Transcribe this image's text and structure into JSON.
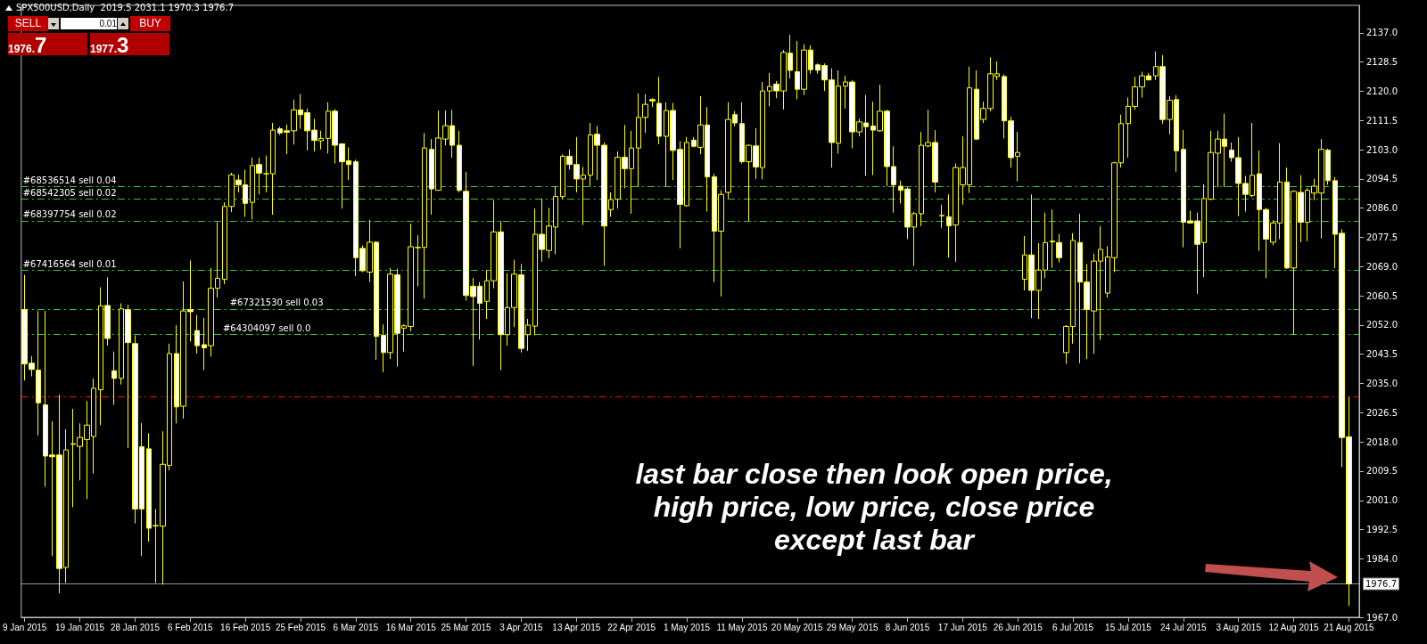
{
  "chart_data": {
    "type": "candlestick",
    "title": "SPX500USD,Daily  2019.5 2031.1 1970.3 1976.7",
    "color": "#ffff00",
    "categories": [
      "9 Jan 2015",
      null,
      null,
      null,
      null,
      null,
      null,
      null,
      "19 Jan 2015",
      null,
      null,
      null,
      null,
      null,
      null,
      null,
      "28 Jan 2015",
      null,
      null,
      null,
      null,
      null,
      null,
      null,
      "6 Feb 2015",
      null,
      null,
      null,
      null,
      null,
      null,
      null,
      "16 Feb 2015",
      null,
      null,
      null,
      null,
      null,
      null,
      null,
      "25 Feb 2015",
      null,
      null,
      null,
      null,
      null,
      null,
      null,
      "6 Mar 2015",
      null,
      null,
      null,
      null,
      null,
      null,
      null,
      "16 Mar 2015",
      null,
      null,
      null,
      null,
      null,
      null,
      null,
      "25 Mar 2015",
      null,
      null,
      null,
      null,
      null,
      null,
      null,
      "3 Apr 2015",
      null,
      null,
      null,
      null,
      null,
      null,
      null,
      "13 Apr 2015",
      null,
      null,
      null,
      null,
      null,
      null,
      null,
      "22 Apr 2015",
      null,
      null,
      null,
      null,
      null,
      null,
      null,
      "1 May 2015",
      null,
      null,
      null,
      null,
      null,
      null,
      null,
      "11 May 2015",
      null,
      null,
      null,
      null,
      null,
      null,
      null,
      "20 May 2015",
      null,
      null,
      null,
      null,
      null,
      null,
      null,
      "29 May 2015",
      null,
      null,
      null,
      null,
      null,
      null,
      null,
      "8 Jun 2015",
      null,
      null,
      null,
      null,
      null,
      null,
      null,
      "17 Jun 2015",
      null,
      null,
      null,
      null,
      null,
      null,
      null,
      "26 Jun 2015",
      null,
      null,
      null,
      null,
      null,
      null,
      null,
      "6 Jul 2015",
      null,
      null,
      null,
      null,
      null,
      null,
      null,
      "15 Jul 2015",
      null,
      null,
      null,
      null,
      null,
      null,
      null,
      "24 Jul 2015",
      null,
      null,
      null,
      null,
      null,
      null,
      null,
      "3 Aug 2015",
      null,
      null,
      null,
      null,
      null,
      null,
      null,
      "12 Aug 2015",
      null,
      null,
      null,
      null,
      null,
      null,
      null,
      "21 Aug 2015"
    ],
    "ohlc": [
      [
        2056.5,
        2066.6,
        2035.9,
        2040.7
      ],
      [
        2040.9,
        2043,
        2037.1,
        2039.1
      ],
      [
        2038.9,
        2056.1,
        2019.9,
        2029.4
      ],
      [
        2028.8,
        2056.1,
        2005,
        2013.9
      ],
      [
        2014.2,
        2024,
        1984.8,
        2013.7
      ],
      [
        2014.2,
        2031.8,
        1974,
        1981.2
      ],
      [
        1981.5,
        2021.7,
        1977,
        2015.7
      ],
      [
        2017.3,
        2027.6,
        1999,
        2017.5
      ],
      [
        2016.7,
        2023.4,
        2006.8,
        2019.3
      ],
      [
        2018.7,
        2029.9,
        2001.4,
        2022.9
      ],
      [
        2019.6,
        2036.5,
        2008.8,
        2033.6
      ],
      [
        2033.2,
        2063,
        2022.9,
        2057.6
      ],
      [
        2057.7,
        2065.9,
        2046,
        2048.1
      ],
      [
        2038.7,
        2044.3,
        2028.8,
        2036.5
      ],
      [
        2036.5,
        2058.3,
        2034.7,
        2056.7
      ],
      [
        2056.5,
        2057.9,
        2016.3,
        2046.9
      ],
      [
        2046.6,
        2049,
        1994.3,
        1998.5
      ],
      [
        2016.6,
        2023.5,
        1984.8,
        1998.5
      ],
      [
        2016,
        2020.5,
        1989,
        1992.9
      ],
      [
        1993.7,
        1998.5,
        1977,
        1993.6
      ],
      [
        1993.5,
        2021.1,
        1976.5,
        2011.5
      ],
      [
        2011.2,
        2046.6,
        2009.7,
        2043.7
      ],
      [
        2043.7,
        2052,
        2023.4,
        2028.2
      ],
      [
        2028.4,
        2064.7,
        2024.8,
        2056.1
      ],
      [
        2056.5,
        2070.8,
        2047.2,
        2055.9
      ],
      [
        2050.4,
        2054.9,
        2043.7,
        2046
      ],
      [
        2046.3,
        2054.1,
        2038.9,
        2045.4
      ],
      [
        2046,
        2068.6,
        2042.8,
        2062.7
      ],
      [
        2062.7,
        2081.9,
        2060,
        2065.6
      ],
      [
        2065.3,
        2087.7,
        2063.9,
        2086.5
      ],
      [
        2086.5,
        2096.3,
        2084.9,
        2095.7
      ],
      [
        2094.2,
        2095.7,
        2090.6,
        2092.8
      ],
      [
        2092.8,
        2097.2,
        2083.5,
        2087.4
      ],
      [
        2087.7,
        2100.7,
        2082.7,
        2098.4
      ],
      [
        2098.7,
        2100.7,
        2090,
        2096.2
      ],
      [
        2096,
        2101.3,
        2090.6,
        2096
      ],
      [
        2096,
        2110.8,
        2084.1,
        2108.7
      ],
      [
        2109.1,
        2109.7,
        2107.3,
        2107.9
      ],
      [
        2108.5,
        2110.3,
        2101.7,
        2108.1
      ],
      [
        2108.5,
        2117.6,
        2104.5,
        2114.6
      ],
      [
        2114.6,
        2119.2,
        2109.1,
        2113.2
      ],
      [
        2113.8,
        2115,
        2102.8,
        2108.5
      ],
      [
        2108.7,
        2112,
        2102.5,
        2105.7
      ],
      [
        2105.6,
        2108.5,
        2103.1,
        2106.3
      ],
      [
        2106.3,
        2116.8,
        2101.9,
        2114.2
      ],
      [
        2114.2,
        2114.8,
        2099,
        2104.3
      ],
      [
        2104.7,
        2104.9,
        2085.9,
        2099.5
      ],
      [
        2099.8,
        2103.7,
        2094.2,
        2098.7
      ],
      [
        2099.5,
        2100.1,
        2066.2,
        2071.6
      ],
      [
        2074.3,
        2075.2,
        2067.4,
        2067.8
      ],
      [
        2067.4,
        2082.6,
        2064.5,
        2076.1
      ],
      [
        2076.1,
        2076.4,
        2041.9,
        2048.7
      ],
      [
        2049,
        2052.2,
        2038.3,
        2044
      ],
      [
        2044,
        2068.6,
        2042.1,
        2066.8
      ],
      [
        2066.6,
        2068.4,
        2039.9,
        2049.6
      ],
      [
        2051.1,
        2052.2,
        2044.3,
        2051.8
      ],
      [
        2051.6,
        2081.5,
        2050.2,
        2074.8
      ],
      [
        2074.6,
        2078.1,
        2063.3,
        2074.5
      ],
      [
        2074.6,
        2107.9,
        2059.7,
        2103.5
      ],
      [
        2103.1,
        2106.1,
        2084.1,
        2091.6
      ],
      [
        2091.2,
        2114.4,
        2091.2,
        2106.4
      ],
      [
        2106.1,
        2114.4,
        2104.3,
        2110
      ],
      [
        2110,
        2114.6,
        2100.7,
        2104.3
      ],
      [
        2104.3,
        2108.5,
        2090.6,
        2091.2
      ],
      [
        2090.9,
        2096.6,
        2059.1,
        2060.6
      ],
      [
        2063.3,
        2065.7,
        2040.1,
        2060.3
      ],
      [
        2063.3,
        2064.5,
        2047.8,
        2058.3
      ],
      [
        2058.9,
        2068,
        2053.8,
        2064.9
      ],
      [
        2064.9,
        2088.3,
        2062.7,
        2079.1
      ],
      [
        2079.1,
        2082.3,
        2038.9,
        2049.2
      ],
      [
        2049.2,
        2067.1,
        2046,
        2057.1
      ],
      [
        2057.1,
        2071,
        2051.4,
        2066.8
      ],
      [
        2066.6,
        2069.8,
        2044,
        2045.2
      ],
      [
        2049.2,
        2053.8,
        2044.5,
        2052
      ],
      [
        2051.7,
        2085.9,
        2049,
        2078.4
      ],
      [
        2078.4,
        2088.8,
        2070.4,
        2074
      ],
      [
        2073.7,
        2086.1,
        2071.4,
        2080.8
      ],
      [
        2080.5,
        2092.4,
        2072.6,
        2089.4
      ],
      [
        2089.4,
        2101.6,
        2088.6,
        2101.1
      ],
      [
        2101.1,
        2103.1,
        2097.2,
        2098.7
      ],
      [
        2098.7,
        2106.7,
        2090.6,
        2094.5
      ],
      [
        2094.5,
        2098,
        2081.1,
        2095.6
      ],
      [
        2095.6,
        2110.8,
        2092.4,
        2107.3
      ],
      [
        2107.5,
        2109.9,
        2094.2,
        2104.3
      ],
      [
        2104.3,
        2105.1,
        2069.2,
        2080.8
      ],
      [
        2085.6,
        2090.6,
        2083.5,
        2088.5
      ],
      [
        2088.6,
        2102.5,
        2085.9,
        2100.8
      ],
      [
        2100.8,
        2110.2,
        2091.8,
        2097.5
      ],
      [
        2097.5,
        2108.5,
        2084.4,
        2103.5
      ],
      [
        2103.5,
        2119.4,
        2092.1,
        2112.4
      ],
      [
        2112.4,
        2119.2,
        2107.9,
        2116.2
      ],
      [
        2117.6,
        2118,
        2115.4,
        2117.2
      ],
      [
        2116.5,
        2124.2,
        2104.6,
        2106.9
      ],
      [
        2106.9,
        2116.8,
        2092.4,
        2114.4
      ],
      [
        2114.4,
        2116.6,
        2094.2,
        2102.8
      ],
      [
        2103.1,
        2105.5,
        2074.3,
        2087.1
      ],
      [
        2086.7,
        2106.7,
        2086.4,
        2105.1
      ],
      [
        2105.8,
        2106.7,
        2103.7,
        2104
      ],
      [
        2103.7,
        2118.6,
        2101.7,
        2110.2
      ],
      [
        2110.2,
        2115.4,
        2085,
        2095.1
      ],
      [
        2095.1,
        2096,
        2064.5,
        2079.3
      ],
      [
        2079.3,
        2091.2,
        2060.3,
        2090
      ],
      [
        2090.6,
        2116.8,
        2088.8,
        2111.8
      ],
      [
        2113.2,
        2114.2,
        2109.9,
        2110.8
      ],
      [
        2110.6,
        2116.8,
        2099,
        2099.5
      ],
      [
        2099.5,
        2104.5,
        2082.3,
        2104.3
      ],
      [
        2104.1,
        2109.3,
        2094.5,
        2098
      ],
      [
        2097.8,
        2122.7,
        2094.4,
        2120.1
      ],
      [
        2120.1,
        2125.3,
        2115.6,
        2121.4
      ],
      [
        2122.1,
        2123,
        2118,
        2120.1
      ],
      [
        2120.1,
        2132,
        2114.7,
        2131.3
      ],
      [
        2131.1,
        2136.4,
        2123.7,
        2126.1
      ],
      [
        2125.7,
        2134.6,
        2117.7,
        2120.6
      ],
      [
        2120.6,
        2133.7,
        2118.9,
        2132
      ],
      [
        2132,
        2133.4,
        2125.1,
        2126.3
      ],
      [
        2127.7,
        2128.1,
        2125.1,
        2126.1
      ],
      [
        2127.5,
        2128.1,
        2120.1,
        2123.3
      ],
      [
        2123.3,
        2126.7,
        2097.8,
        2105.1
      ],
      [
        2104.9,
        2126.1,
        2101.9,
        2121.5
      ],
      [
        2121.5,
        2124.5,
        2115,
        2122.7
      ],
      [
        2122.7,
        2123.3,
        2103.4,
        2108.2
      ],
      [
        2108.2,
        2112,
        2106.9,
        2111.1
      ],
      [
        2110.8,
        2118.9,
        2095.4,
        2109.7
      ],
      [
        2109.9,
        2117,
        2095.6,
        2108.7
      ],
      [
        2108.5,
        2121.9,
        2108.2,
        2114.2
      ],
      [
        2114.2,
        2114.6,
        2092.4,
        2098.1
      ],
      [
        2098.1,
        2104,
        2084.7,
        2092.8
      ],
      [
        2092.4,
        2094,
        2087.4,
        2091.2
      ],
      [
        2091.6,
        2092.1,
        2077,
        2080.5
      ],
      [
        2080.5,
        2084.9,
        2069.2,
        2084.4
      ],
      [
        2084.4,
        2108.2,
        2080.8,
        2104.3
      ],
      [
        2104.1,
        2114.6,
        2103.7,
        2105.1
      ],
      [
        2105.1,
        2108.7,
        2090.6,
        2093.6
      ],
      [
        2083.8,
        2087,
        2080.3,
        2083.9
      ],
      [
        2083.5,
        2090,
        2071.6,
        2080.9
      ],
      [
        2081.1,
        2099,
        2070.4,
        2097.8
      ],
      [
        2092.8,
        2106.9,
        2087,
        2097.8
      ],
      [
        2092.8,
        2127.2,
        2090.4,
        2121
      ],
      [
        2120.6,
        2126.1,
        2105.8,
        2106.1
      ],
      [
        2111.8,
        2117,
        2110.8,
        2115
      ],
      [
        2115,
        2129.9,
        2114.2,
        2125.1
      ],
      [
        2124.3,
        2128.7,
        2123.3,
        2125.1
      ],
      [
        2124.3,
        2124.9,
        2106.3,
        2111.4
      ],
      [
        2111.4,
        2112.6,
        2097.8,
        2100.7
      ],
      [
        2101.1,
        2108.2,
        2093.8,
        2102.2
      ],
      [
        2065.3,
        2077.9,
        2062.1,
        2072.4
      ],
      [
        2072.4,
        2090,
        2054,
        2062.1
      ],
      [
        2062.1,
        2075.8,
        2053.8,
        2068
      ],
      [
        2068,
        2084.7,
        2065.7,
        2076
      ],
      [
        2076.4,
        2085.6,
        2068.6,
        2076.2
      ],
      [
        2076,
        2078.5,
        2070.2,
        2071.6
      ],
      [
        2044,
        2052,
        2040.7,
        2051.6
      ],
      [
        2051.6,
        2078.7,
        2046.6,
        2076.6
      ],
      [
        2076,
        2084.4,
        2040.9,
        2064.5
      ],
      [
        2064.5,
        2069.8,
        2042.1,
        2056.5
      ],
      [
        2056.1,
        2072.8,
        2043.6,
        2070.6
      ],
      [
        2070.6,
        2080.8,
        2047.7,
        2074
      ],
      [
        2061.3,
        2074.9,
        2060,
        2071.8
      ],
      [
        2071.6,
        2099.5,
        2067.4,
        2099.2
      ],
      [
        2099.2,
        2113.2,
        2097.8,
        2110.6
      ],
      [
        2110.6,
        2118.2,
        2100.7,
        2115.6
      ],
      [
        2115.6,
        2124.2,
        2114.6,
        2121.3
      ],
      [
        2121.3,
        2125.7,
        2118.2,
        2124.5
      ],
      [
        2124.5,
        2125.3,
        2123.3,
        2123.3
      ],
      [
        2124.5,
        2131.6,
        2123.3,
        2127.2
      ],
      [
        2127.2,
        2130.5,
        2110.6,
        2111.8
      ],
      [
        2111.8,
        2118.6,
        2107.5,
        2117.4
      ],
      [
        2117.6,
        2118.9,
        2096.6,
        2102.7
      ],
      [
        2103.1,
        2108.7,
        2074.6,
        2081.9
      ],
      [
        2082.3,
        2085.3,
        2081.7,
        2081.7
      ],
      [
        2082.3,
        2084.7,
        2061.1,
        2075.5
      ],
      [
        2076,
        2093,
        2065.9,
        2088.8
      ],
      [
        2088.6,
        2108.5,
        2088.3,
        2102.2
      ],
      [
        2102,
        2108.5,
        2092.1,
        2106.1
      ],
      [
        2106.1,
        2113.5,
        2092.1,
        2104
      ],
      [
        2102.9,
        2105.1,
        2099.5,
        2100.7
      ],
      [
        2100.7,
        2106.7,
        2083.7,
        2093.2
      ],
      [
        2093.2,
        2095.4,
        2085,
        2090
      ],
      [
        2089.7,
        2110.8,
        2089.2,
        2095.6
      ],
      [
        2096,
        2102.8,
        2073.6,
        2085.6
      ],
      [
        2085.6,
        2086.1,
        2065.7,
        2077
      ],
      [
        2076.1,
        2082.5,
        2075.2,
        2081.7
      ],
      [
        2081.7,
        2104.9,
        2077,
        2093.6
      ],
      [
        2093.6,
        2097.8,
        2068.3,
        2068.6
      ],
      [
        2068.6,
        2091.2,
        2049.2,
        2090.9
      ],
      [
        2090.6,
        2095.6,
        2076.1,
        2081.9
      ],
      [
        2081.9,
        2091.8,
        2076.4,
        2091.2
      ],
      [
        2090.4,
        2094.5,
        2088.3,
        2092.4
      ],
      [
        2090.4,
        2106.1,
        2077.2,
        2103.1
      ],
      [
        2102.9,
        2103.3,
        2092.8,
        2094
      ],
      [
        2094,
        2095.1,
        2068.6,
        2078.4
      ],
      [
        2078.7,
        2079.9,
        2010.7,
        2019.3
      ],
      [
        2019.5,
        2031.1,
        1970.3,
        1976.7
      ]
    ],
    "ylim": [
      1967,
      2145
    ],
    "yticks": [
      {
        "value": 2137,
        "label": "2137.0"
      },
      2128.5,
      {
        "value": 2120,
        "label": "2120.0"
      },
      2111.5,
      {
        "value": 2103,
        "label": "2103.0"
      },
      2094.5,
      {
        "value": 2086,
        "label": "2086.0"
      },
      2077.5,
      {
        "value": 2069,
        "label": "2069.0"
      },
      2060.5,
      {
        "value": 2052,
        "label": "2052.0"
      },
      2043.5,
      {
        "value": 2035,
        "label": "2035.0"
      },
      2026.5,
      {
        "value": 2018,
        "label": "2018.0"
      },
      2009.5,
      {
        "value": 2001,
        "label": "2001.0"
      },
      1992.5,
      {
        "value": 1984,
        "label": "1984.0"
      },
      {
        "value": 1967,
        "label": "1967.0"
      }
    ],
    "ref_lines": [
      {
        "axis": "y",
        "value": 2092.4,
        "label": "#68536514 sell 0.04",
        "color": "#33cc33",
        "line_style": "dashed"
      },
      {
        "axis": "y",
        "value": 2088.6,
        "label": "#68542305 sell 0.02",
        "color": "#33cc33",
        "line_style": "dashed"
      },
      {
        "axis": "y",
        "value": 2082.3,
        "label": "#68397754 sell 0.02",
        "color": "#33cc33",
        "line_style": "dashed"
      },
      {
        "axis": "y",
        "value": 2068.0,
        "label": "#67416564 sell 0.01",
        "color": "#33cc33",
        "line_style": "dashed"
      },
      {
        "axis": "y",
        "value": 2056.7,
        "label": "#67321530 sell 0.03",
        "color": "#33cc33",
        "line_style": "dashed"
      },
      {
        "axis": "y",
        "value": 2049.2,
        "label": "#64304097 sell 0.0",
        "color": "#33cc33",
        "line_style": "dashed"
      },
      {
        "axis": "y",
        "value": 2031.1,
        "label": null,
        "color": "#ff0000",
        "line_style": "dashed"
      },
      {
        "axis": "y",
        "value": 1976.7,
        "label": "1976.7",
        "color": "#8a9aa8",
        "line_style": "solid"
      }
    ],
    "annotations": [
      "SELL",
      "BUY",
      "0.01",
      "1976.7",
      "1977.3",
      "last bar close then look open price,\nhigh price, low price, close price\nexcept last bar"
    ]
  }
}
